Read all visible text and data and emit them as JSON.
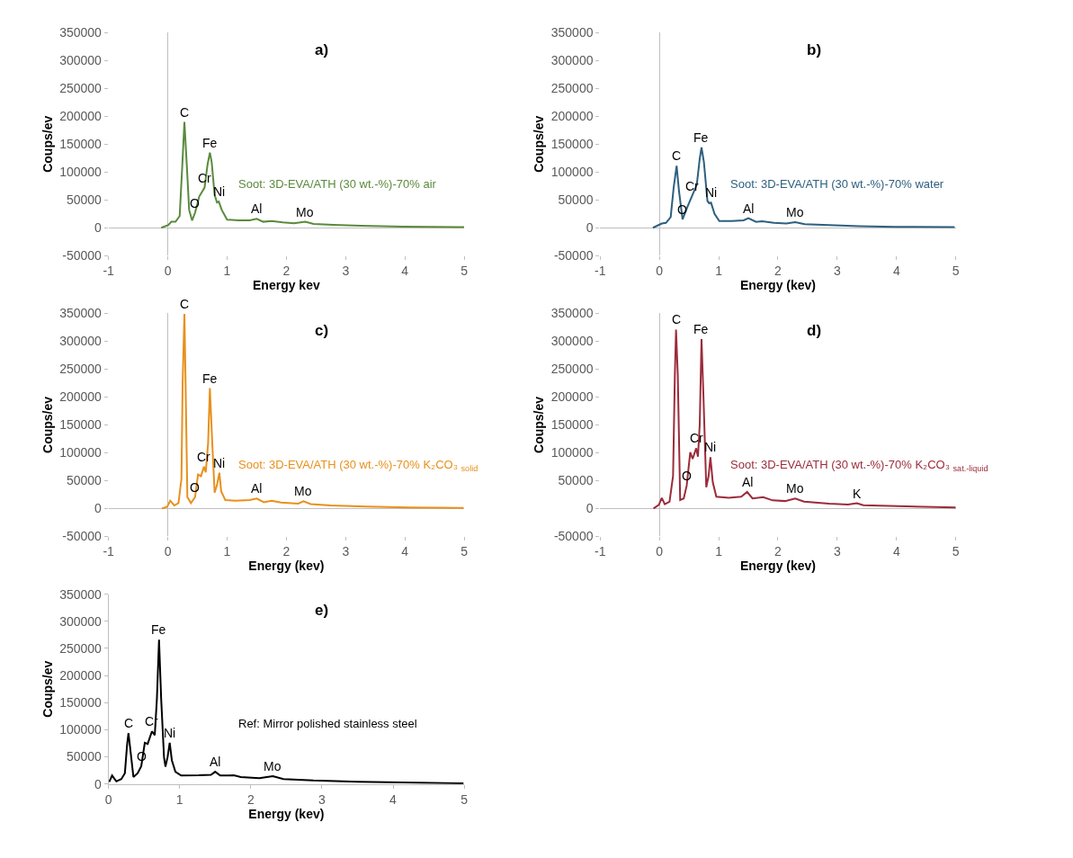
{
  "chart_data": [
    {
      "type": "line",
      "title": "a)",
      "xlabel": "Energy kev",
      "ylabel": "Coups/ev",
      "xlim": [
        -1,
        5
      ],
      "xticks": [
        -1,
        0,
        1,
        2,
        3,
        4,
        5
      ],
      "ylim": [
        -50000,
        350000
      ],
      "yticks": [
        -50000,
        0,
        50000,
        100000,
        150000,
        200000,
        250000,
        300000,
        350000
      ],
      "series": [
        {
          "name": "Soot: 3D-EVA/ATH (30 wt.-%)-70% air",
          "color": "#5a8a3c",
          "x": [
            -0.11,
            0.01,
            0.06,
            0.13,
            0.2,
            0.245,
            0.28,
            0.32,
            0.36,
            0.41,
            0.46,
            0.53,
            0.62,
            0.67,
            0.71,
            0.74,
            0.79,
            0.83,
            0.86,
            0.91,
            1.0,
            1.19,
            1.38,
            1.5,
            1.61,
            1.75,
            1.94,
            2.13,
            2.32,
            2.46,
            2.79,
            3.26,
            3.97,
            5.0
          ],
          "values": [
            0,
            5000,
            10700,
            10700,
            21000,
            113000,
            190000,
            113000,
            32000,
            13000,
            27000,
            56000,
            72000,
            113000,
            135000,
            118000,
            59000,
            45500,
            47000,
            32000,
            14500,
            13400,
            13400,
            16000,
            10700,
            12000,
            9600,
            8000,
            10700,
            7000,
            5400,
            3800,
            2100,
            1000
          ]
        }
      ],
      "annotations": [
        {
          "text": "C",
          "x": 0.28,
          "y": 190000
        },
        {
          "text": "Fe",
          "x": 0.71,
          "y": 135000
        },
        {
          "text": "Cr",
          "x": 0.62,
          "y": 72000
        },
        {
          "text": "O",
          "x": 0.46,
          "y": 27000
        },
        {
          "text": "Ni",
          "x": 0.86,
          "y": 47000
        },
        {
          "text": "Al",
          "x": 1.5,
          "y": 16000
        },
        {
          "text": "Mo",
          "x": 2.32,
          "y": 10700
        }
      ]
    },
    {
      "type": "line",
      "title": "b)",
      "xlabel": "Energy (kev)",
      "ylabel": "Coups/ev",
      "xlim": [
        -1,
        5
      ],
      "xticks": [
        -1,
        0,
        1,
        2,
        3,
        4,
        5
      ],
      "ylim": [
        -50000,
        350000
      ],
      "yticks": [
        -50000,
        0,
        50000,
        100000,
        150000,
        200000,
        250000,
        300000,
        350000
      ],
      "series": [
        {
          "name": "Soot: 3D-EVA/ATH (30 wt.-%)-70% water",
          "color": "#2e5f7f",
          "x": [
            -0.11,
            0.04,
            0.11,
            0.19,
            0.24,
            0.29,
            0.33,
            0.39,
            0.47,
            0.55,
            0.63,
            0.68,
            0.71,
            0.75,
            0.81,
            0.84,
            0.87,
            0.93,
            1.01,
            1.22,
            1.42,
            1.5,
            1.63,
            1.73,
            1.93,
            2.14,
            2.29,
            2.45,
            2.86,
            3.37,
            3.98,
            4.98
          ],
          "values": [
            0,
            7600,
            8700,
            19000,
            72000,
            111000,
            66000,
            15000,
            37000,
            57000,
            77000,
            124000,
            144000,
            118000,
            48000,
            44000,
            45000,
            25000,
            12000,
            12000,
            13400,
            17000,
            10500,
            11600,
            8700,
            7600,
            10000,
            6400,
            4700,
            2900,
            1700,
            1200
          ]
        }
      ],
      "annotations": [
        {
          "text": "C",
          "x": 0.29,
          "y": 111000
        },
        {
          "text": "Fe",
          "x": 0.71,
          "y": 144000
        },
        {
          "text": "Cr",
          "x": 0.55,
          "y": 57000
        },
        {
          "text": "O",
          "x": 0.39,
          "y": 15000
        },
        {
          "text": "Ni",
          "x": 0.87,
          "y": 45000
        },
        {
          "text": "Al",
          "x": 1.5,
          "y": 17000
        },
        {
          "text": "Mo",
          "x": 2.29,
          "y": 10000
        }
      ]
    },
    {
      "type": "line",
      "title": "c)",
      "xlabel": "Energy (kev)",
      "ylabel": "Coups/ev",
      "xlim": [
        -1,
        5
      ],
      "xticks": [
        -1,
        0,
        1,
        2,
        3,
        4,
        5
      ],
      "ylim": [
        -50000,
        350000
      ],
      "yticks": [
        -50000,
        0,
        50000,
        100000,
        150000,
        200000,
        250000,
        300000,
        350000
      ],
      "series": [
        {
          "name": "Soot: 3D-EVA/ATH (30 wt.-%)-70% K₂CO₃ $_{solid}$",
          "color": "#e8901c",
          "x": [
            -0.1,
            -0.01,
            0.04,
            0.11,
            0.18,
            0.23,
            0.25,
            0.28,
            0.3,
            0.33,
            0.39,
            0.46,
            0.51,
            0.56,
            0.61,
            0.64,
            0.68,
            0.71,
            0.75,
            0.79,
            0.83,
            0.87,
            0.9,
            0.97,
            1.14,
            1.38,
            1.5,
            1.62,
            1.75,
            1.91,
            2.2,
            2.29,
            2.41,
            2.75,
            3.35,
            4.07,
            4.99
          ],
          "values": [
            0,
            3200,
            14000,
            5400,
            9700,
            53000,
            224000,
            349000,
            224000,
            20400,
            9700,
            20400,
            61000,
            58000,
            75000,
            65000,
            117000,
            216000,
            117000,
            28500,
            42000,
            64000,
            31000,
            15000,
            14000,
            15000,
            17700,
            11300,
            14000,
            10700,
            8600,
            12900,
            8000,
            5400,
            3200,
            1600,
            1000
          ]
        }
      ],
      "annotations": [
        {
          "text": "C",
          "x": 0.28,
          "y": 349000
        },
        {
          "text": "Fe",
          "x": 0.71,
          "y": 216000
        },
        {
          "text": "Cr",
          "x": 0.61,
          "y": 75000
        },
        {
          "text": "O",
          "x": 0.46,
          "y": 20400
        },
        {
          "text": "Ni",
          "x": 0.87,
          "y": 64000
        },
        {
          "text": "Al",
          "x": 1.5,
          "y": 17700
        },
        {
          "text": "Mo",
          "x": 2.29,
          "y": 12900
        }
      ]
    },
    {
      "type": "line",
      "title": "d)",
      "xlabel": "Energy (kev)",
      "ylabel": "Coups/ev",
      "xlim": [
        -1,
        5
      ],
      "xticks": [
        -1,
        0,
        1,
        2,
        3,
        4,
        5
      ],
      "ylim": [
        -50000,
        350000
      ],
      "yticks": [
        -50000,
        0,
        50000,
        100000,
        150000,
        200000,
        250000,
        300000,
        350000
      ],
      "series": [
        {
          "name": "Soot: 3D-EVA/ATH (30 wt.-%)-70% K₂CO₃ $_{sat.-liquid}$",
          "color": "#9b2c3a",
          "x": [
            -0.1,
            -0.01,
            0.04,
            0.09,
            0.17,
            0.23,
            0.26,
            0.28,
            0.31,
            0.35,
            0.41,
            0.46,
            0.52,
            0.56,
            0.62,
            0.65,
            0.68,
            0.71,
            0.74,
            0.79,
            0.83,
            0.86,
            0.9,
            0.96,
            1.17,
            1.38,
            1.48,
            1.57,
            1.75,
            1.91,
            2.12,
            2.29,
            2.44,
            2.86,
            3.18,
            3.33,
            3.44,
            4.02,
            5.0
          ],
          "values": [
            0,
            6400,
            19000,
            7500,
            12200,
            58600,
            238000,
            321000,
            238000,
            15000,
            18000,
            41000,
            101000,
            89000,
            108000,
            93000,
            151000,
            304000,
            210000,
            38000,
            58600,
            92000,
            47000,
            21000,
            19000,
            21000,
            29600,
            18000,
            20300,
            14500,
            13300,
            18000,
            12200,
            8700,
            7000,
            9300,
            5800,
            4100,
            1700
          ]
        }
      ],
      "annotations": [
        {
          "text": "C",
          "x": 0.28,
          "y": 321000
        },
        {
          "text": "Fe",
          "x": 0.71,
          "y": 304000
        },
        {
          "text": "Cr",
          "x": 0.62,
          "y": 108000
        },
        {
          "text": "O",
          "x": 0.46,
          "y": 41000
        },
        {
          "text": "Ni",
          "x": 0.86,
          "y": 92000
        },
        {
          "text": "Al",
          "x": 1.48,
          "y": 29600
        },
        {
          "text": "Mo",
          "x": 2.29,
          "y": 18000
        },
        {
          "text": "K",
          "x": 3.33,
          "y": 9300
        }
      ]
    },
    {
      "type": "line",
      "title": "e)",
      "xlabel": "Energy (kev)",
      "ylabel": "Coups/ev",
      "xlim": [
        0,
        5
      ],
      "xticks": [
        0,
        1,
        2,
        3,
        4,
        5
      ],
      "ylim": [
        0,
        350000
      ],
      "yticks": [
        0,
        50000,
        100000,
        150000,
        200000,
        250000,
        300000,
        350000
      ],
      "series": [
        {
          "name": "Ref: Mirror polished stainless steel",
          "color": "#000000",
          "x": [
            0.01,
            0.05,
            0.11,
            0.18,
            0.23,
            0.26,
            0.28,
            0.3,
            0.35,
            0.41,
            0.46,
            0.51,
            0.55,
            0.61,
            0.65,
            0.68,
            0.71,
            0.74,
            0.78,
            0.8,
            0.83,
            0.86,
            0.89,
            0.94,
            1.02,
            1.27,
            1.44,
            1.5,
            1.57,
            1.76,
            1.86,
            2.12,
            2.31,
            2.46,
            2.88,
            3.51,
            4.14,
            4.99
          ],
          "values": [
            3800,
            15600,
            4800,
            9200,
            20000,
            71000,
            94000,
            71000,
            13000,
            20000,
            33000,
            76000,
            74000,
            97000,
            90000,
            157000,
            266000,
            157000,
            49500,
            32000,
            49500,
            76000,
            44000,
            22600,
            15600,
            16000,
            17000,
            22600,
            15600,
            16000,
            13000,
            10800,
            14500,
            9200,
            6500,
            4300,
            2700,
            1100
          ]
        }
      ],
      "annotations": [
        {
          "text": "Fe",
          "x": 0.71,
          "y": 266000
        },
        {
          "text": "C",
          "x": 0.28,
          "y": 94000
        },
        {
          "text": "Cr",
          "x": 0.61,
          "y": 97000
        },
        {
          "text": "O",
          "x": 0.46,
          "y": 33000
        },
        {
          "text": "Ni",
          "x": 0.86,
          "y": 76000
        },
        {
          "text": "Al",
          "x": 1.5,
          "y": 22600
        },
        {
          "text": "Mo",
          "x": 2.31,
          "y": 14500
        }
      ]
    }
  ]
}
